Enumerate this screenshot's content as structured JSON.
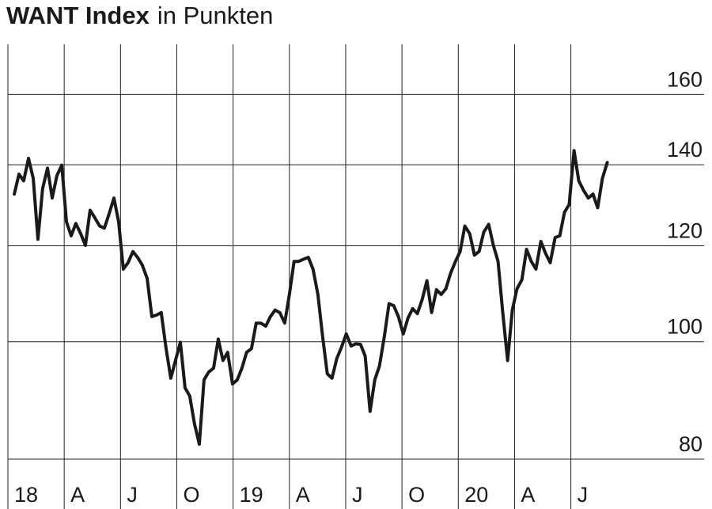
{
  "chart_data": {
    "type": "line",
    "title": "WANT Index",
    "subtitle": "in Punkten",
    "log_scale": true,
    "grid": true,
    "xlim": [
      0,
      37.1
    ],
    "xticks": [
      {
        "value": 0,
        "label": "18"
      },
      {
        "value": 3,
        "label": "A"
      },
      {
        "value": 6,
        "label": "J"
      },
      {
        "value": 9,
        "label": "O"
      },
      {
        "value": 12,
        "label": "19"
      },
      {
        "value": 15,
        "label": "A"
      },
      {
        "value": 18,
        "label": "J"
      },
      {
        "value": 21,
        "label": "O"
      },
      {
        "value": 24,
        "label": "20"
      },
      {
        "value": 27,
        "label": "A"
      },
      {
        "value": 30,
        "label": "J"
      }
    ],
    "ylim": [
      80,
      176
    ],
    "yticks": [
      80,
      100,
      120,
      140,
      160
    ],
    "x": [
      0.34,
      0.59,
      0.84,
      1.1,
      1.35,
      1.6,
      1.85,
      2.11,
      2.36,
      2.61,
      2.87,
      3.12,
      3.37,
      3.62,
      3.88,
      4.13,
      4.38,
      4.64,
      4.89,
      5.14,
      5.39,
      5.65,
      5.9,
      6.15,
      6.4,
      6.66,
      6.91,
      7.16,
      7.42,
      7.67,
      7.92,
      8.17,
      8.43,
      8.68,
      8.93,
      9.19,
      9.44,
      9.69,
      9.94,
      10.2,
      10.45,
      10.7,
      10.96,
      11.21,
      11.46,
      11.71,
      11.97,
      12.22,
      12.47,
      12.72,
      12.98,
      13.23,
      13.48,
      13.74,
      13.99,
      14.24,
      14.49,
      14.75,
      15.0,
      15.25,
      15.5,
      15.76,
      16.01,
      16.26,
      16.52,
      16.77,
      17.02,
      17.27,
      17.53,
      17.78,
      18.03,
      18.29,
      18.54,
      18.79,
      19.04,
      19.3,
      19.55,
      19.8,
      20.06,
      20.31,
      20.56,
      20.81,
      21.07,
      21.32,
      21.57,
      21.82,
      22.08,
      22.33,
      22.58,
      22.84,
      23.09,
      23.34,
      23.59,
      23.85,
      24.1,
      24.35,
      24.61,
      24.86,
      25.11,
      25.36,
      25.62,
      25.87,
      26.12,
      26.37,
      26.63,
      26.88,
      27.13,
      27.39,
      27.64,
      27.89,
      28.14,
      28.4,
      28.65,
      28.9,
      29.16,
      29.41,
      29.66,
      29.91,
      30.17,
      30.42,
      30.67,
      30.93,
      31.18,
      31.43,
      31.68,
      31.94
    ],
    "series": [
      {
        "name": "WANT Index",
        "color": "#1a1a1a",
        "values": [
          132.4,
          137.5,
          135.8,
          141.7,
          136.4,
          121.5,
          133.8,
          139.1,
          131.4,
          137.1,
          139.9,
          125.6,
          122.3,
          125.2,
          122.8,
          120.1,
          128.4,
          126.5,
          124.6,
          124.1,
          127.5,
          131.4,
          125.6,
          114.8,
          116.2,
          118.7,
          117.4,
          115.7,
          112.8,
          104.9,
          105.2,
          105.7,
          98.7,
          93.3,
          96.5,
          99.9,
          91.6,
          90.2,
          85.6,
          82.3,
          93.0,
          94.4,
          95.1,
          100.5,
          96.5,
          98.0,
          92.3,
          93.0,
          95.1,
          98.0,
          98.7,
          103.6,
          103.6,
          103.0,
          104.9,
          106.2,
          105.7,
          103.6,
          109.4,
          116.5,
          116.5,
          117.0,
          117.4,
          114.8,
          109.4,
          101.0,
          94.1,
          93.3,
          96.9,
          99.0,
          101.5,
          99.2,
          99.6,
          99.5,
          97.3,
          87.6,
          93.0,
          95.5,
          101.0,
          107.5,
          107.1,
          104.9,
          101.5,
          104.6,
          106.5,
          105.5,
          108.4,
          112.3,
          105.7,
          110.4,
          109.4,
          110.6,
          113.9,
          116.5,
          118.7,
          124.6,
          122.8,
          117.9,
          118.7,
          123.2,
          125.0,
          120.1,
          116.5,
          105.7,
          96.5,
          106.2,
          110.6,
          112.5,
          119.2,
          116.5,
          114.8,
          121.0,
          118.3,
          116.2,
          121.9,
          122.3,
          127.9,
          129.8,
          143.8,
          135.8,
          133.4,
          131.4,
          132.4,
          129.0,
          136.4,
          140.6
        ]
      }
    ]
  }
}
